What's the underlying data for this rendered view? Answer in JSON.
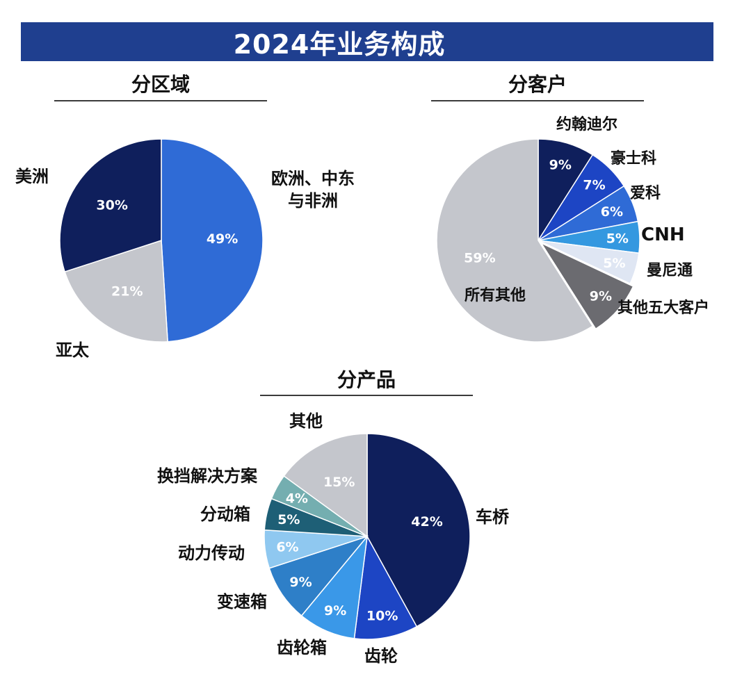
{
  "header": {
    "title": "2024年业务构成"
  },
  "colors": {
    "banner": "#1f3f8f",
    "navy": "#0f1f5c",
    "royal_blue": "#2f6bd6",
    "gray": "#c4c6cc",
    "dark_gray": "#6b6b70"
  },
  "chart_data": [
    {
      "type": "pie",
      "title": "分区域",
      "slices": [
        {
          "label": "欧洲、中东与非洲",
          "value": 49,
          "value_label": "49%",
          "color": "#2f6bd6"
        },
        {
          "label": "亚太",
          "value": 21,
          "value_label": "21%",
          "color": "#c4c6cc"
        },
        {
          "label": "美洲",
          "value": 30,
          "value_label": "30%",
          "color": "#0f1f5c"
        }
      ]
    },
    {
      "type": "pie",
      "title": "分客户",
      "slices": [
        {
          "label": "约翰迪尔",
          "value": 9,
          "value_label": "9%",
          "color": "#0f1f5c"
        },
        {
          "label": "豪士科",
          "value": 7,
          "value_label": "7%",
          "color": "#1d45c4"
        },
        {
          "label": "爱科",
          "value": 6,
          "value_label": "6%",
          "color": "#2f6bd6"
        },
        {
          "label": "CNH",
          "value": 5,
          "value_label": "5%",
          "color": "#3498e0"
        },
        {
          "label": "曼尼通",
          "value": 5,
          "value_label": "5%",
          "color": "#dfe6f3"
        },
        {
          "label": "其他五大客户",
          "value": 9,
          "value_label": "9%",
          "color": "#6b6b70"
        },
        {
          "label": "所有其他",
          "value": 59,
          "value_label": "59%",
          "color": "#c4c6cc"
        }
      ]
    },
    {
      "type": "pie",
      "title": "分产品",
      "slices": [
        {
          "label": "车桥",
          "value": 42,
          "value_label": "42%",
          "color": "#0f1f5c"
        },
        {
          "label": "齿轮",
          "value": 10,
          "value_label": "10%",
          "color": "#1d45c4"
        },
        {
          "label": "齿轮箱",
          "value": 9,
          "value_label": "9%",
          "color": "#3a98e8"
        },
        {
          "label": "变速箱",
          "value": 9,
          "value_label": "9%",
          "color": "#2e7fc8"
        },
        {
          "label": "动力传动",
          "value": 6,
          "value_label": "6%",
          "color": "#8fc8f0"
        },
        {
          "label": "分动箱",
          "value": 5,
          "value_label": "5%",
          "color": "#1e5f76"
        },
        {
          "label": "换挡解决方案",
          "value": 4,
          "value_label": "4%",
          "color": "#74aeb0"
        },
        {
          "label": "其他",
          "value": 15,
          "value_label": "15%",
          "color": "#c4c6cc"
        }
      ]
    }
  ]
}
